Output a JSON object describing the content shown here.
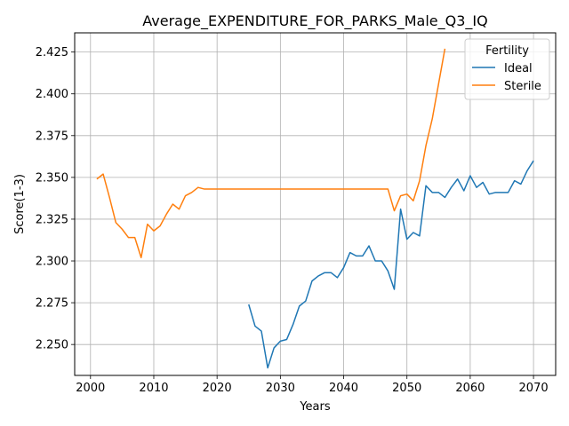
{
  "chart_data": {
    "type": "line",
    "title": "Average_EXPENDITURE_FOR_PARKS_Male_Q3_IQ",
    "xlabel": "Years",
    "ylabel": "Score(1-3)",
    "xlim": [
      1997.5,
      2073.5
    ],
    "ylim": [
      2.2315,
      2.4365
    ],
    "xticks": [
      2000,
      2010,
      2020,
      2030,
      2040,
      2050,
      2060,
      2070
    ],
    "yticks": [
      2.25,
      2.275,
      2.3,
      2.325,
      2.35,
      2.375,
      2.4,
      2.425
    ],
    "ytick_labels": [
      "2.250",
      "2.275",
      "2.300",
      "2.325",
      "2.350",
      "2.375",
      "2.400",
      "2.425"
    ],
    "grid": true,
    "legend": {
      "title": "Fertility",
      "placement": "top-right"
    },
    "series": [
      {
        "name": "Ideal",
        "color": "#1f77b4",
        "x": [
          2025,
          2026,
          2027,
          2028,
          2029,
          2030,
          2031,
          2032,
          2033,
          2034,
          2035,
          2036,
          2037,
          2038,
          2039,
          2040,
          2041,
          2042,
          2043,
          2044,
          2045,
          2046,
          2047,
          2048,
          2049,
          2050,
          2051,
          2052,
          2053,
          2054,
          2055,
          2056,
          2057,
          2058,
          2059,
          2060,
          2061,
          2062,
          2063,
          2064,
          2065,
          2066,
          2067,
          2068,
          2069,
          2070
        ],
        "y": [
          2.274,
          2.261,
          2.258,
          2.236,
          2.248,
          2.252,
          2.253,
          2.262,
          2.273,
          2.276,
          2.288,
          2.291,
          2.293,
          2.293,
          2.29,
          2.296,
          2.305,
          2.303,
          2.303,
          2.309,
          2.3,
          2.3,
          2.294,
          2.283,
          2.331,
          2.313,
          2.317,
          2.315,
          2.345,
          2.341,
          2.341,
          2.338,
          2.344,
          2.349,
          2.342,
          2.351,
          2.344,
          2.347,
          2.34,
          2.341,
          2.341,
          2.341,
          2.348,
          2.346,
          2.354,
          2.36
        ]
      },
      {
        "name": "Sterile",
        "color": "#ff7f0e",
        "x": [
          2001,
          2002,
          2003,
          2004,
          2005,
          2006,
          2007,
          2008,
          2009,
          2010,
          2011,
          2012,
          2013,
          2014,
          2015,
          2016,
          2017,
          2018,
          2019,
          2020,
          2025,
          2030,
          2035,
          2040,
          2045,
          2047,
          2048,
          2049,
          2050,
          2051,
          2052,
          2053,
          2054,
          2055,
          2056
        ],
        "y": [
          2.349,
          2.352,
          2.338,
          2.323,
          2.319,
          2.314,
          2.314,
          2.302,
          2.322,
          2.318,
          2.321,
          2.328,
          2.334,
          2.331,
          2.339,
          2.341,
          2.344,
          2.343,
          2.343,
          2.343,
          2.343,
          2.343,
          2.343,
          2.343,
          2.343,
          2.343,
          2.33,
          2.339,
          2.34,
          2.336,
          2.348,
          2.369,
          2.385,
          2.406,
          2.427
        ]
      }
    ]
  }
}
